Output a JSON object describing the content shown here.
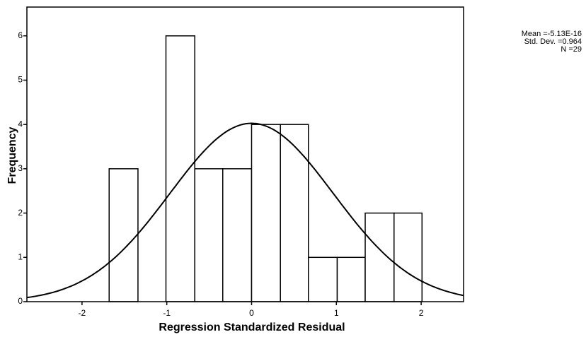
{
  "chart_data": {
    "type": "histogram",
    "x_label": "Regression Standardized Residual",
    "y_label": "Frequency",
    "bins": [
      -1.68,
      -1.34,
      -1.01,
      -0.67,
      -0.34,
      0,
      0.34,
      0.67,
      1.01,
      1.34,
      1.68,
      2.01
    ],
    "values": [
      3,
      0,
      6,
      3,
      3,
      4,
      4,
      1,
      1,
      2,
      2
    ],
    "color": "#ffffff",
    "xlim": [
      -2.65,
      2.5
    ],
    "ylim": [
      0,
      6.65
    ],
    "xticks": [
      -2,
      -1,
      0,
      1,
      2
    ],
    "yticks": [
      0,
      1,
      2,
      3,
      4,
      5,
      6
    ],
    "normal_curve": true,
    "stats": [
      {
        "value": -5.13e-16,
        "label": "Mean =-5.13E-16"
      },
      {
        "value": 0.964,
        "label": "Std. Dev. =0.964"
      },
      {
        "value": 29,
        "label": "N =29"
      }
    ]
  }
}
